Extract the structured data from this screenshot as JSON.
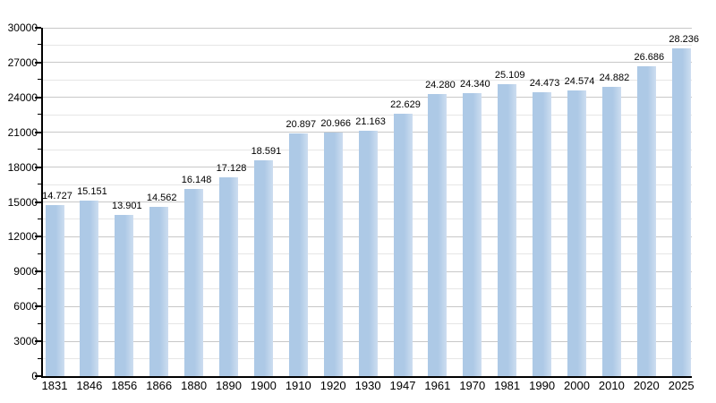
{
  "chart_data": {
    "type": "bar",
    "title": "",
    "xlabel": "",
    "ylabel": "",
    "categories": [
      "1831",
      "1846",
      "1856",
      "1866",
      "1880",
      "1890",
      "1900",
      "1910",
      "1920",
      "1930",
      "1947",
      "1961",
      "1970",
      "1981",
      "1990",
      "2000",
      "2010",
      "2020",
      "2025"
    ],
    "values": [
      14727,
      15151,
      13901,
      14562,
      16148,
      17128,
      18591,
      20897,
      20966,
      21163,
      22629,
      24280,
      24340,
      25109,
      24473,
      24574,
      24882,
      26686,
      28236
    ],
    "value_labels": [
      "14.727",
      "15.151",
      "13.901",
      "14.562",
      "16.148",
      "17.128",
      "18.591",
      "20.897",
      "20.966",
      "21.163",
      "22.629",
      "24.280",
      "24.340",
      "25.109",
      "24.473",
      "24.574",
      "24.882",
      "26.686",
      "28.236"
    ],
    "ylim": [
      0,
      30000
    ],
    "y_major_step": 3000,
    "y_minor_step": 1500,
    "y_tick_labels": [
      "0",
      "3000",
      "6000",
      "9000",
      "12000",
      "15000",
      "18000",
      "21000",
      "24000",
      "27000",
      "30000"
    ],
    "grid": true,
    "legend": null,
    "colors": {
      "bar_fill_left": "#adc9e6",
      "bar_fill_right": "#cdddf0",
      "axis": "#000000",
      "grid_major": "#c8c8c8",
      "grid_minor": "#e6e6e6",
      "background": "#ffffff",
      "text": "#000000"
    }
  }
}
